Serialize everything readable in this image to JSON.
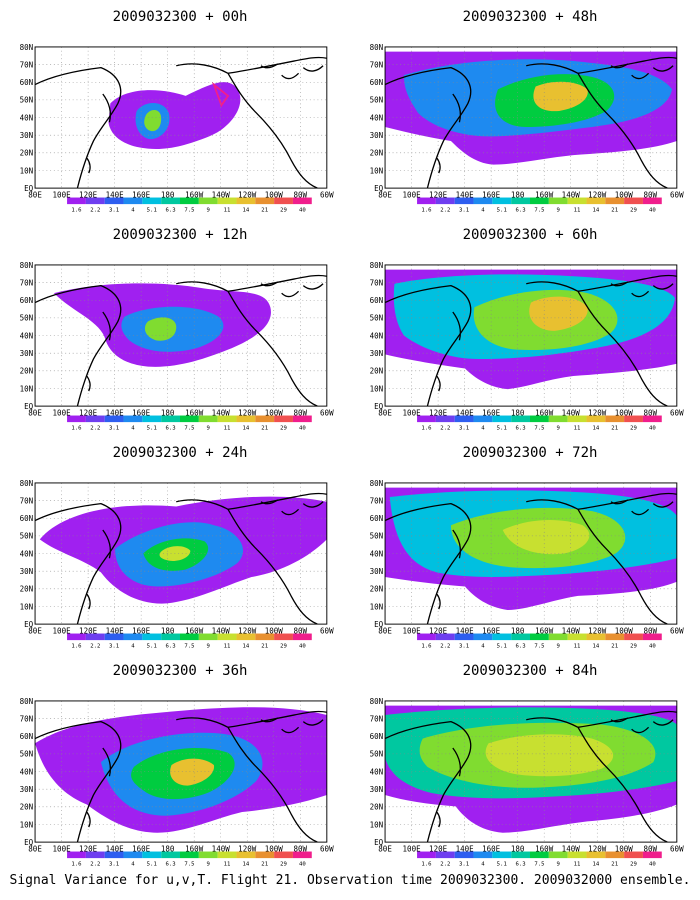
{
  "panels": [
    {
      "title": "2009032300 + 00h"
    },
    {
      "title": "2009032300 + 48h"
    },
    {
      "title": "2009032300 + 12h"
    },
    {
      "title": "2009032300 + 60h"
    },
    {
      "title": "2009032300 + 24h"
    },
    {
      "title": "2009032300 + 72h"
    },
    {
      "title": "2009032300 + 36h"
    },
    {
      "title": "2009032300 + 84h"
    }
  ],
  "axes": {
    "lon_labels": [
      "80E",
      "100E",
      "120E",
      "140E",
      "160E",
      "180",
      "160W",
      "140W",
      "120W",
      "100W",
      "80W",
      "60W"
    ],
    "lat_labels": [
      "80N",
      "70N",
      "60N",
      "50N",
      "40N",
      "30N",
      "20N",
      "10N",
      "EQ"
    ]
  },
  "colorbar": {
    "labels": [
      "1.6",
      "2.2",
      "3.1",
      "4",
      "5.1",
      "6.3",
      "7.5",
      "9",
      "11",
      "14",
      "21",
      "29",
      "40"
    ],
    "colors": [
      "#a020f0",
      "#6e3ef0",
      "#2e5ef0",
      "#1e8af0",
      "#00c0e0",
      "#00c8a0",
      "#00cc40",
      "#80dc30",
      "#c8e030",
      "#e8c030",
      "#e89030",
      "#f05050",
      "#f01e8c"
    ]
  },
  "footer": "Signal Variance for u,v,T. Flight 21. Observation time 2009032300. 2009032000 ensemble."
}
